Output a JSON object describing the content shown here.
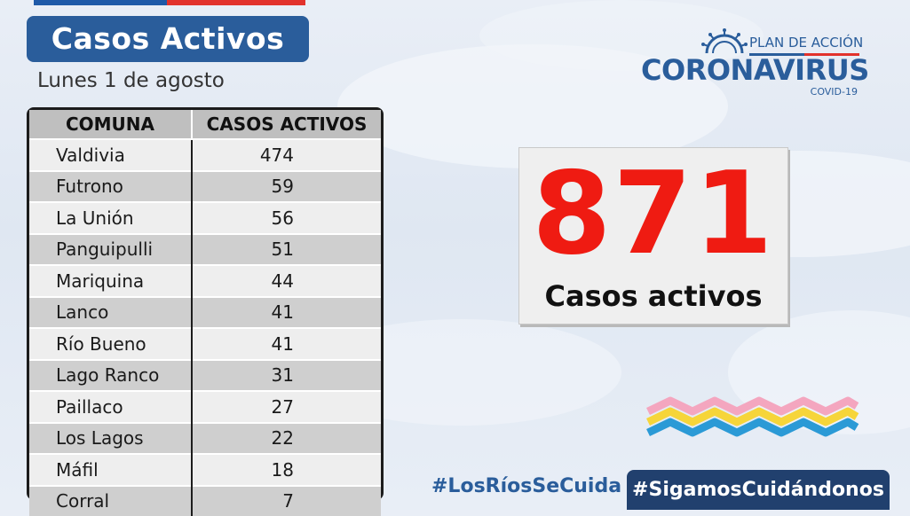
{
  "header": {
    "title": "Casos Activos",
    "date": "Lunes 1 de agosto"
  },
  "table": {
    "headers": [
      "COMUNA",
      "CASOS ACTIVOS"
    ],
    "rows": [
      {
        "comuna": "Valdivia",
        "casos": "474"
      },
      {
        "comuna": "Futrono",
        "casos": "59"
      },
      {
        "comuna": "La Unión",
        "casos": "56"
      },
      {
        "comuna": "Panguipulli",
        "casos": "51"
      },
      {
        "comuna": "Mariquina",
        "casos": "44"
      },
      {
        "comuna": "Lanco",
        "casos": "41"
      },
      {
        "comuna": "Río Bueno",
        "casos": "41"
      },
      {
        "comuna": "Lago Ranco",
        "casos": "31"
      },
      {
        "comuna": "Paillaco",
        "casos": "27"
      },
      {
        "comuna": "Los Lagos",
        "casos": "22"
      },
      {
        "comuna": "Máfil",
        "casos": "18"
      },
      {
        "comuna": "Corral",
        "casos": "7"
      }
    ]
  },
  "logo": {
    "plan": "PLAN DE ACCIÓN",
    "word": "CORONAVIRUS",
    "covid": "COVID-19",
    "icon": "virus-icon"
  },
  "summary": {
    "total": "871",
    "label": "Casos activos"
  },
  "footer": {
    "hashtag_left": "#LosRíosSeCuida",
    "hashtag_right": "#SigamosCuidándonos"
  },
  "colors": {
    "brand_blue": "#2a5d9b",
    "accent_red": "#ef1b12",
    "dark_navy": "#21406e"
  }
}
